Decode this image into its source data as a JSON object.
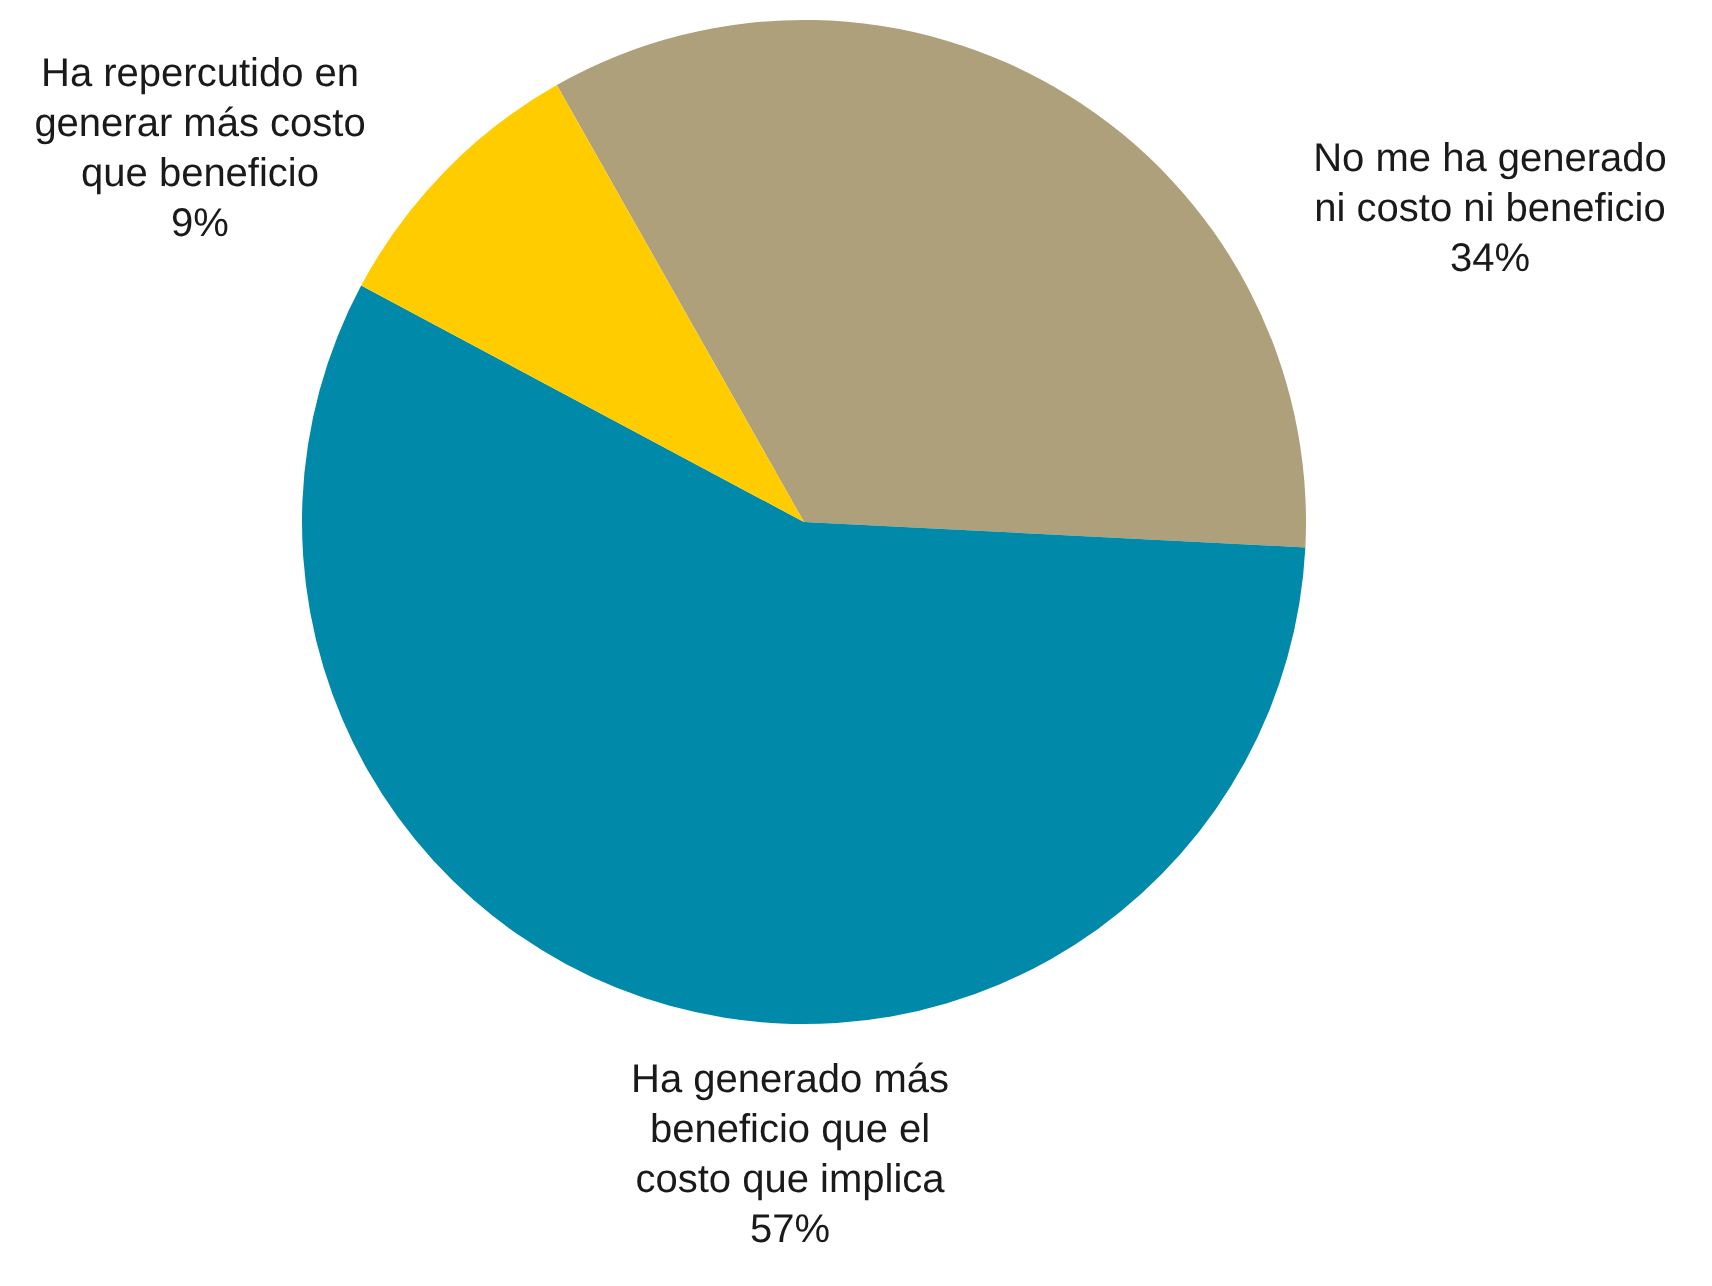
{
  "chart_data": {
    "type": "pie",
    "categories": [
      "No me ha generado\nni costo ni beneficio",
      "Ha generado más\nbeneficio que el\ncosto que implica",
      "Ha repercutido en\ngenerar más costo\nque beneficio"
    ],
    "values": [
      34,
      57,
      9
    ],
    "value_labels": [
      "34%",
      "57%",
      "9%"
    ],
    "colors": [
      "#ada07a",
      "#0089a8",
      "#ffcc00"
    ],
    "legend": false
  }
}
